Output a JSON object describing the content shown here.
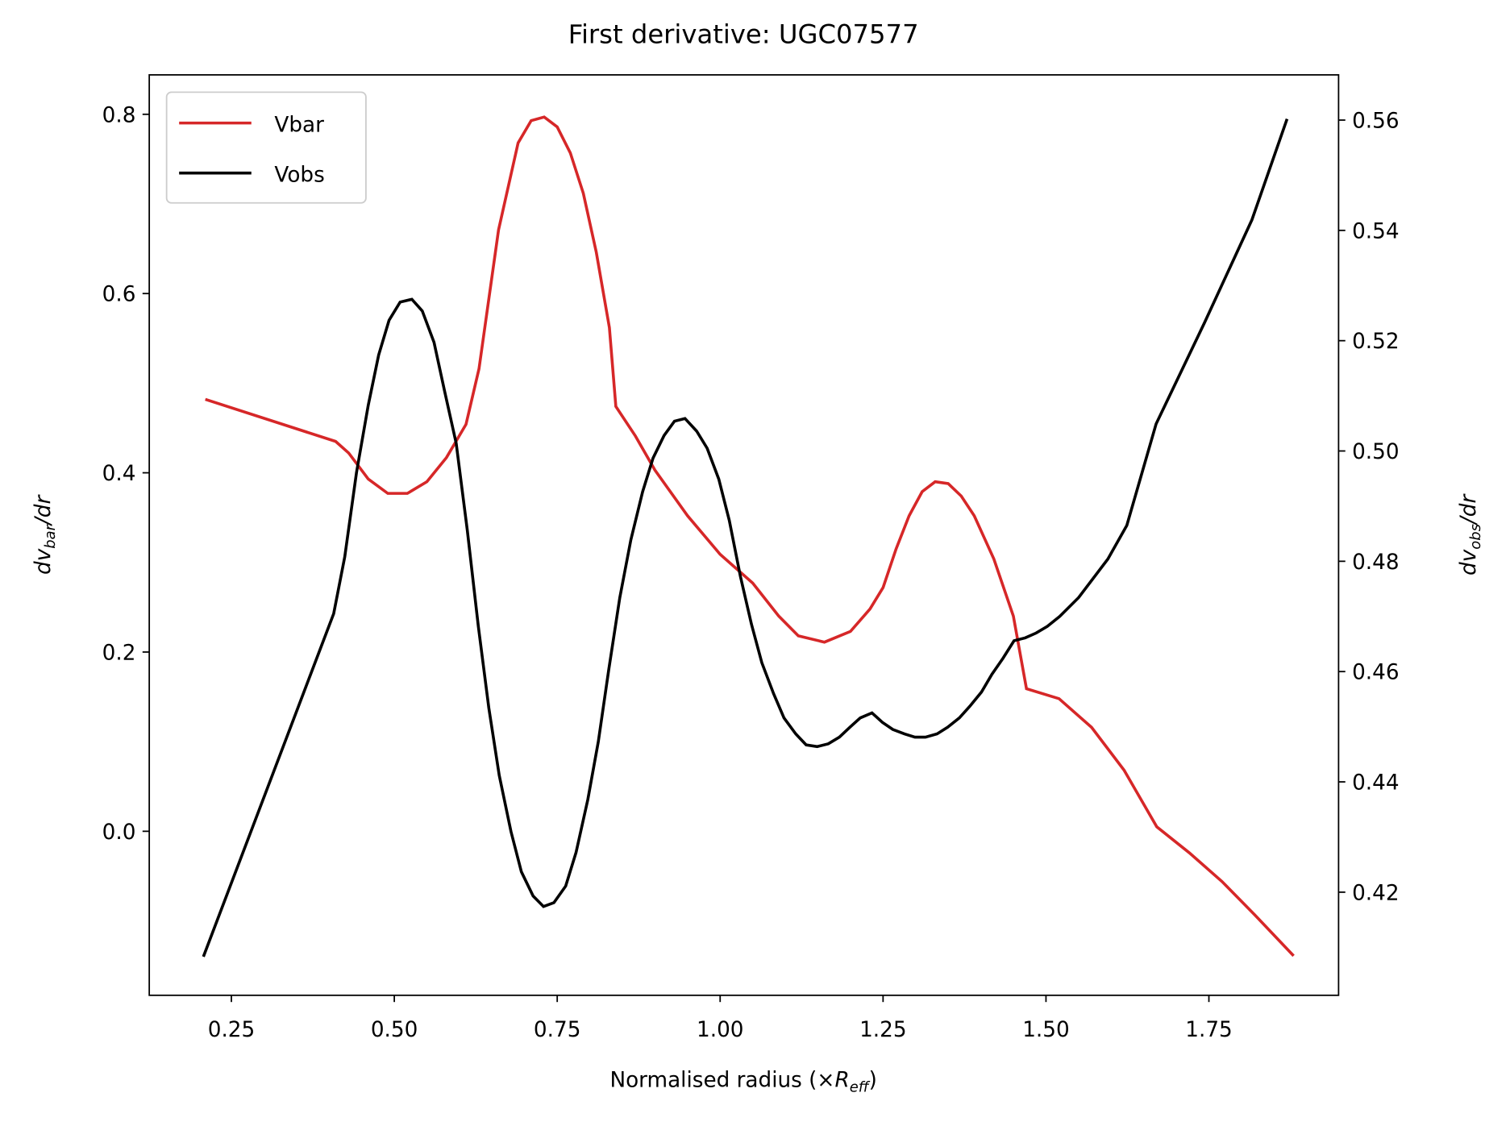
{
  "chart_data": {
    "type": "line",
    "title": "First derivative: UGC07577",
    "xlabel": [
      "Normalised radius (×",
      "R",
      "eff",
      ")"
    ],
    "ylabel": [
      "d",
      "v",
      "bar",
      "/",
      "dr"
    ],
    "y2label": [
      "d",
      "v",
      "obs",
      "/",
      "dr"
    ],
    "xlim": [
      0.124,
      1.949
    ],
    "xticks": [
      0.25,
      {
        "value": 0.5,
        "label": "0.50"
      },
      0.75,
      {
        "value": 1,
        "label": "1.00"
      },
      1.25,
      {
        "value": 1.5,
        "label": "1.50"
      },
      1.75
    ],
    "ylim": [
      -0.183,
      0.844
    ],
    "yticks": [
      {
        "value": 0,
        "label": "0.0"
      },
      0.2,
      0.4,
      0.6,
      0.8
    ],
    "y2lim": [
      0.4013,
      0.5682
    ],
    "y2ticks": [
      0.42,
      0.44,
      0.46,
      0.48,
      {
        "value": 0.5,
        "label": "0.50"
      },
      0.52,
      0.54,
      0.56
    ],
    "legend": "upper left",
    "ylabel_color": "#d62728",
    "series": [
      {
        "name": "Vbar",
        "color": "#d62728",
        "axis": "y",
        "x": [
          0.21,
          0.41,
          0.43,
          0.46,
          0.49,
          0.52,
          0.55,
          0.58,
          0.61,
          0.63,
          0.66,
          0.69,
          0.71,
          0.73,
          0.75,
          0.77,
          0.79,
          0.81,
          0.83,
          0.84,
          0.87,
          0.9,
          0.95,
          1.0,
          1.05,
          1.09,
          1.12,
          1.16,
          1.2,
          1.23,
          1.25,
          1.27,
          1.29,
          1.31,
          1.33,
          1.35,
          1.37,
          1.39,
          1.42,
          1.45,
          1.47,
          1.52,
          1.57,
          1.62,
          1.67,
          1.72,
          1.77,
          1.82,
          1.88
        ],
        "values": [
          0.482,
          0.435,
          0.422,
          0.393,
          0.377,
          0.377,
          0.39,
          0.417,
          0.454,
          0.516,
          0.671,
          0.768,
          0.793,
          0.797,
          0.786,
          0.757,
          0.712,
          0.646,
          0.562,
          0.474,
          0.441,
          0.403,
          0.352,
          0.309,
          0.277,
          0.24,
          0.218,
          0.211,
          0.223,
          0.248,
          0.272,
          0.315,
          0.352,
          0.379,
          0.39,
          0.388,
          0.374,
          0.352,
          0.304,
          0.24,
          0.159,
          0.148,
          0.116,
          0.068,
          0.005,
          -0.024,
          -0.056,
          -0.093,
          -0.139
        ]
      },
      {
        "name": "Vobs",
        "color": "#000000",
        "axis": "y2",
        "x": [
          0.207,
          0.407,
          0.424,
          0.442,
          0.46,
          0.476,
          0.492,
          0.509,
          0.527,
          0.543,
          0.561,
          0.577,
          0.595,
          0.612,
          0.629,
          0.645,
          0.661,
          0.679,
          0.695,
          0.713,
          0.729,
          0.745,
          0.763,
          0.779,
          0.797,
          0.813,
          0.829,
          0.846,
          0.863,
          0.881,
          0.897,
          0.914,
          0.93,
          0.946,
          0.964,
          0.98,
          0.998,
          1.014,
          1.031,
          1.048,
          1.064,
          1.082,
          1.098,
          1.116,
          1.132,
          1.149,
          1.166,
          1.183,
          1.199,
          1.215,
          1.233,
          1.249,
          1.265,
          1.283,
          1.299,
          1.315,
          1.333,
          1.349,
          1.367,
          1.383,
          1.401,
          1.417,
          1.434,
          1.451,
          1.468,
          1.485,
          1.502,
          1.521,
          1.55,
          1.595,
          1.624,
          1.669,
          1.743,
          1.816,
          1.87
        ],
        "values": [
          0.4083,
          0.4705,
          0.4808,
          0.4961,
          0.5083,
          0.5174,
          0.5237,
          0.527,
          0.5275,
          0.5254,
          0.5197,
          0.5109,
          0.5014,
          0.4857,
          0.4682,
          0.4534,
          0.4412,
          0.431,
          0.4237,
          0.4193,
          0.4174,
          0.4181,
          0.4211,
          0.4272,
          0.4368,
          0.4473,
          0.4603,
          0.4734,
          0.4839,
          0.4926,
          0.4987,
          0.5028,
          0.5054,
          0.5059,
          0.5036,
          0.5005,
          0.4949,
          0.4874,
          0.4773,
          0.4686,
          0.4616,
          0.456,
          0.4516,
          0.4487,
          0.4467,
          0.4464,
          0.4469,
          0.4481,
          0.4499,
          0.4516,
          0.4525,
          0.4508,
          0.4495,
          0.4487,
          0.4481,
          0.4481,
          0.4487,
          0.4499,
          0.4516,
          0.4537,
          0.4563,
          0.4595,
          0.4624,
          0.4656,
          0.4661,
          0.467,
          0.4682,
          0.47,
          0.4734,
          0.4804,
          0.4865,
          0.5049,
          0.5232,
          0.5419,
          0.5602
        ]
      }
    ]
  }
}
